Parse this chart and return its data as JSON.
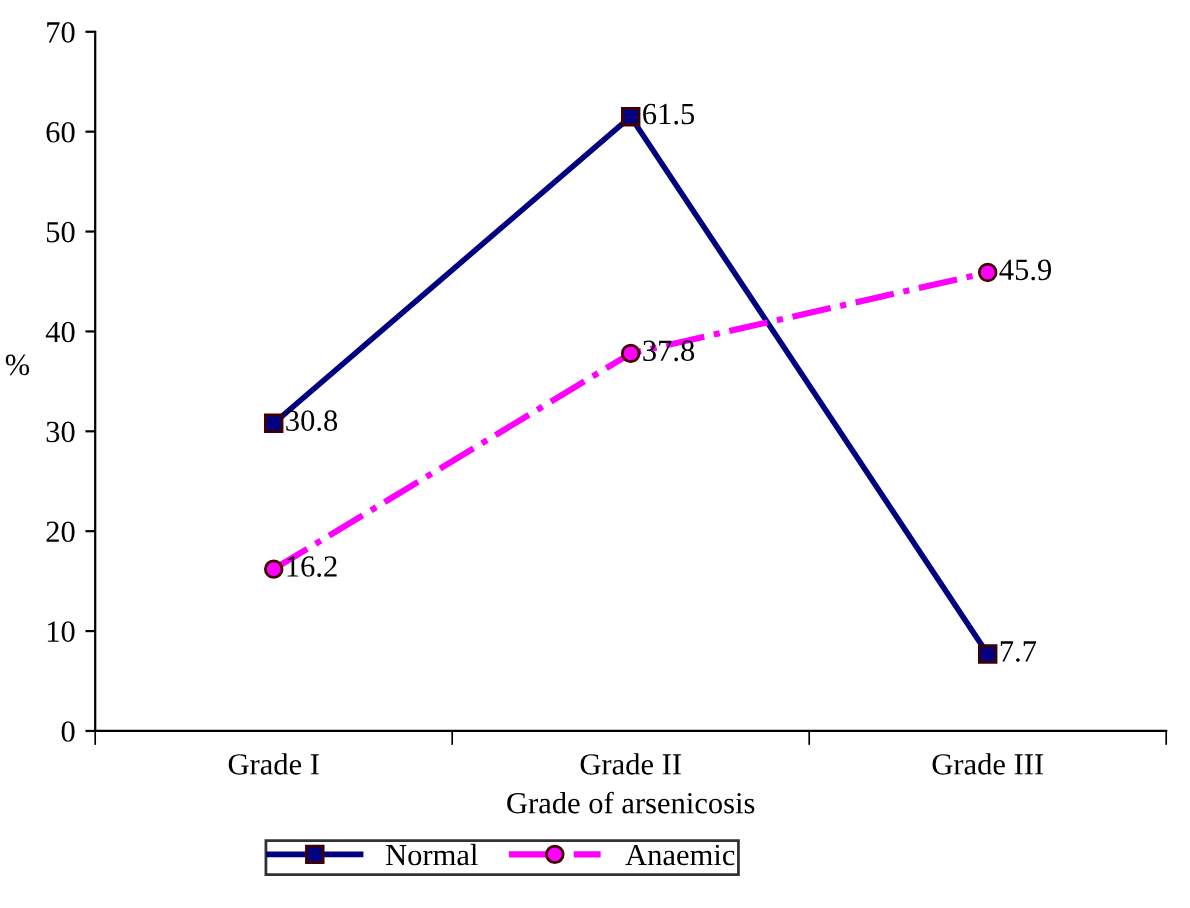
{
  "chart_data": {
    "type": "line",
    "xlabel": "Grade of arsenicosis",
    "ylabel": "%",
    "categories": [
      "Grade I",
      "Grade II",
      "Grade III"
    ],
    "series": [
      {
        "name": "Normal",
        "color": "#000080",
        "values": [
          30.8,
          61.5,
          7.7
        ],
        "marker": "square",
        "line_style": "solid"
      },
      {
        "name": "Anaemic",
        "color": "#ff00ff",
        "values": [
          16.2,
          37.8,
          45.9
        ],
        "marker": "circle",
        "line_style": "dashdot"
      }
    ],
    "ylim": [
      0,
      70
    ],
    "yticks": [
      0,
      10,
      20,
      30,
      40,
      50,
      60,
      70
    ],
    "grid": false,
    "legend": "bottom",
    "data_labels": true
  }
}
